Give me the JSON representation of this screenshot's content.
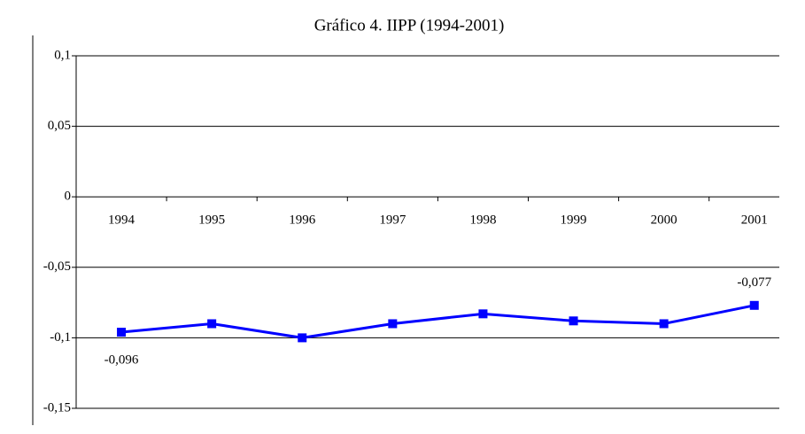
{
  "chart_data": {
    "type": "line",
    "title": "Gráfico 4. IIPP (1994-2001)",
    "categories": [
      "1994",
      "1995",
      "1996",
      "1997",
      "1998",
      "1999",
      "2000",
      "2001"
    ],
    "values": [
      -0.096,
      -0.09,
      -0.1,
      -0.09,
      -0.083,
      -0.088,
      -0.09,
      -0.077
    ],
    "value_labels": [
      "-0,096",
      null,
      null,
      null,
      null,
      null,
      null,
      "-0,077"
    ],
    "color": "#0000ff",
    "ylim": [
      -0.15,
      0.1
    ],
    "yticks": [
      {
        "value": -0.15,
        "label": "-0,15"
      },
      {
        "value": -0.1,
        "label": "-0,1"
      },
      {
        "value": -0.05,
        "label": "-0,05"
      },
      0,
      {
        "value": 0.05,
        "label": "0,05"
      },
      {
        "value": 0.1,
        "label": "0,1"
      }
    ],
    "grid": true
  }
}
